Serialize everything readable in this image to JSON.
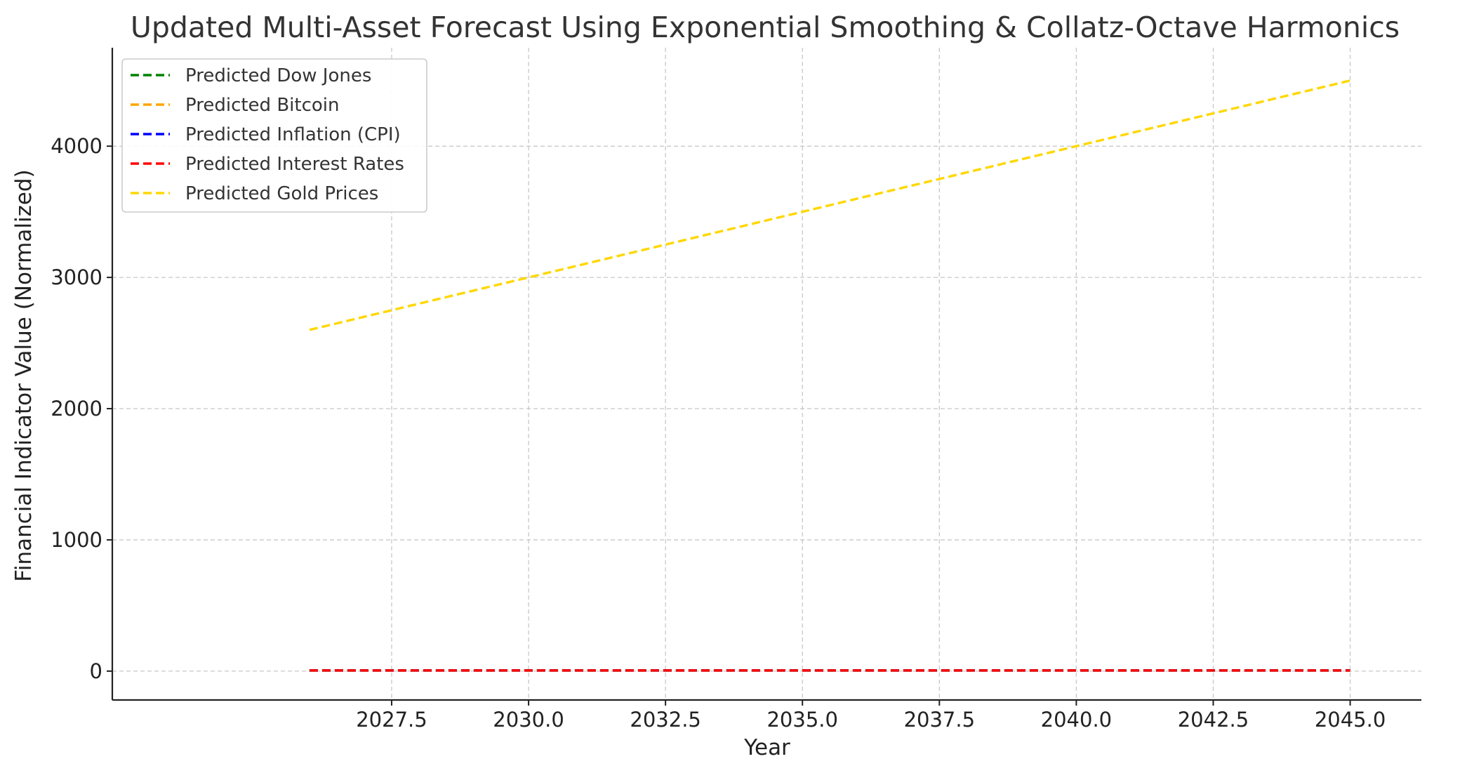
{
  "chart_data": {
    "type": "line",
    "title": "Updated Multi-Asset Forecast Using Exponential Smoothing & Collatz-Octave Harmonics",
    "xlabel": "Year",
    "ylabel": "Financial Indicator Value (Normalized)",
    "xlim": [
      2022.4,
      2046.3
    ],
    "ylim": [
      -220,
      4750
    ],
    "xticks": [
      2027.5,
      2030.0,
      2032.5,
      2035.0,
      2037.5,
      2040.0,
      2042.5,
      2045.0
    ],
    "xtick_labels": [
      "2027.5",
      "2030.0",
      "2032.5",
      "2035.0",
      "2037.5",
      "2040.0",
      "2042.5",
      "2045.0"
    ],
    "yticks": [
      0,
      1000,
      2000,
      3000,
      4000
    ],
    "ytick_labels": [
      "0",
      "1000",
      "2000",
      "3000",
      "4000"
    ],
    "grid": true,
    "legend_position": "top-left",
    "x": [
      2026,
      2027,
      2028,
      2029,
      2030,
      2031,
      2032,
      2033,
      2034,
      2035,
      2036,
      2037,
      2038,
      2039,
      2040,
      2041,
      2042,
      2043,
      2044,
      2045
    ],
    "series": [
      {
        "name": "Predicted Dow Jones",
        "color": "#008000",
        "values": [
          5,
          5,
          5,
          5,
          5,
          5,
          5,
          5,
          5,
          5,
          5,
          5,
          5,
          5,
          5,
          5,
          5,
          5,
          5,
          5
        ]
      },
      {
        "name": "Predicted Bitcoin",
        "color": "#FFA500",
        "values": [
          5,
          5,
          5,
          5,
          5,
          5,
          5,
          5,
          5,
          5,
          5,
          5,
          5,
          5,
          5,
          5,
          5,
          5,
          5,
          5
        ]
      },
      {
        "name": "Predicted Inflation (CPI)",
        "color": "#0000FF",
        "values": [
          5,
          5,
          5,
          5,
          5,
          5,
          5,
          5,
          5,
          5,
          5,
          5,
          5,
          5,
          5,
          5,
          5,
          5,
          5,
          5
        ]
      },
      {
        "name": "Predicted Interest Rates",
        "color": "#FF0000",
        "values": [
          5,
          5,
          5,
          5,
          5,
          5,
          5,
          5,
          5,
          5,
          5,
          5,
          5,
          5,
          5,
          5,
          5,
          5,
          5,
          5
        ]
      },
      {
        "name": "Predicted Gold Prices",
        "color": "#FFD700",
        "values": [
          2600,
          2700,
          2800,
          2900,
          3000,
          3100,
          3200,
          3300,
          3400,
          3500,
          3600,
          3700,
          3800,
          3900,
          4000,
          4100,
          4200,
          4300,
          4400,
          4500
        ]
      }
    ]
  }
}
